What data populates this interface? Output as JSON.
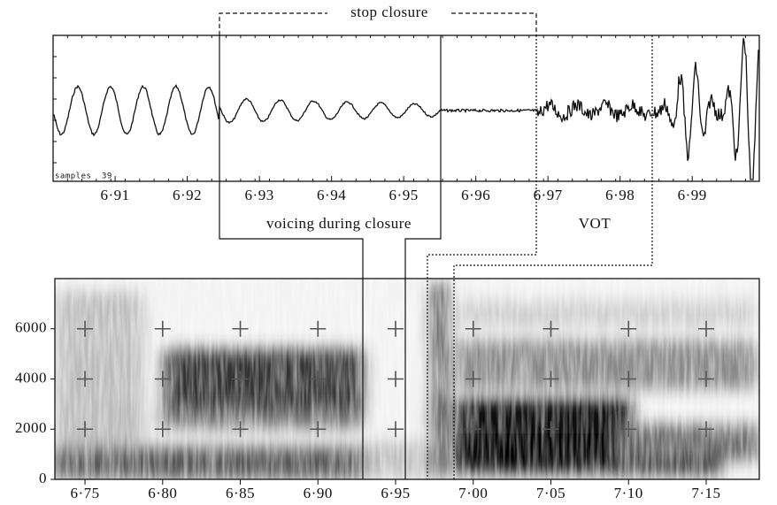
{
  "waveform": {
    "xlim": [
      6.9014,
      6.9993
    ],
    "xticks": [
      {
        "value": 6.91,
        "label": "6·91"
      },
      {
        "value": 6.92,
        "label": "6·92"
      },
      {
        "value": 6.93,
        "label": "6·93"
      },
      {
        "value": 6.94,
        "label": "6·94"
      },
      {
        "value": 6.95,
        "label": "6·95"
      },
      {
        "value": 6.96,
        "label": "6·96"
      },
      {
        "value": 6.97,
        "label": "6·97"
      },
      {
        "value": 6.98,
        "label": "6·98"
      },
      {
        "value": 6.99,
        "label": "6·99"
      }
    ],
    "counter_label": "samples",
    "counter_value": "39"
  },
  "spectrogram": {
    "xlim": [
      6.7306,
      7.1842
    ],
    "ylim": [
      0,
      8000
    ],
    "xticks": [
      {
        "value": 6.75,
        "label": "6·75"
      },
      {
        "value": 6.8,
        "label": "6·80"
      },
      {
        "value": 6.85,
        "label": "6·85"
      },
      {
        "value": 6.9,
        "label": "6·90"
      },
      {
        "value": 6.95,
        "label": "6·95"
      },
      {
        "value": 7.0,
        "label": "7·00"
      },
      {
        "value": 7.05,
        "label": "7·05"
      },
      {
        "value": 7.1,
        "label": "7·10"
      },
      {
        "value": 7.15,
        "label": "7·15"
      }
    ],
    "yticks": [
      0,
      2000,
      4000,
      6000
    ]
  },
  "annotations": {
    "stop_closure": "stop closure",
    "voicing": "voicing during closure",
    "vot": "VOT"
  }
}
